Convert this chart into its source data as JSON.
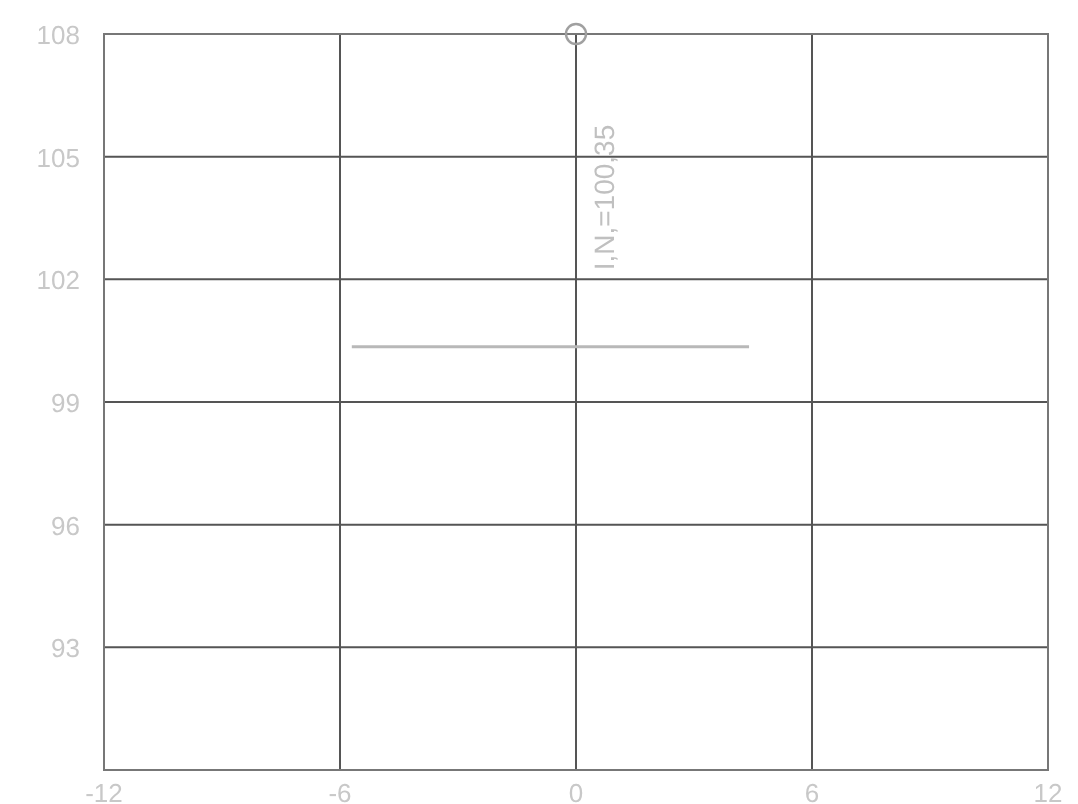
{
  "chart_data": {
    "type": "line",
    "x": [
      -5.7,
      4.4
    ],
    "series": [
      {
        "color": "#b8b8b8",
        "values": [
          100.35,
          100.35
        ]
      },
      {
        "type": "scatter",
        "color": "#a0a0a0",
        "x": [
          0
        ],
        "values": [
          108
        ],
        "marker": "circle"
      }
    ],
    "xlim": [
      -12,
      12
    ],
    "xticks": [
      -12,
      -6,
      0,
      6,
      12
    ],
    "ylim": [
      90,
      108
    ],
    "yticks": [
      {
        "value": 90,
        "label": null
      },
      93,
      96,
      99,
      102,
      105,
      108
    ],
    "grid": true,
    "annotations": [
      "I,N,=100,35"
    ]
  }
}
